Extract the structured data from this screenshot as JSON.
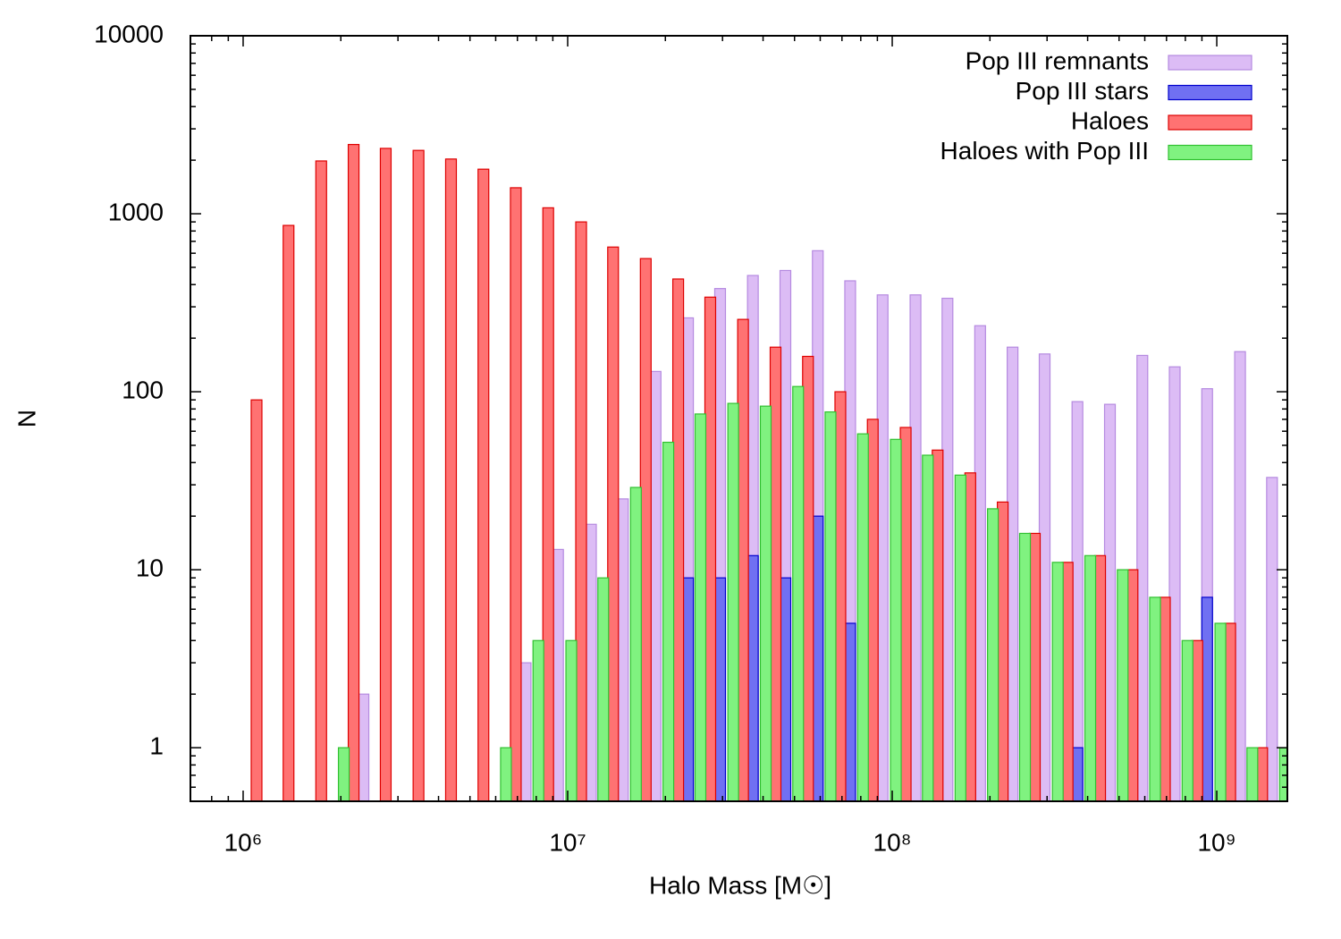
{
  "chart_data": {
    "type": "bar",
    "xlabel": "Halo Mass [M☉]",
    "ylabel": "N",
    "xlog": true,
    "ylog": true,
    "xlim": [
      688000,
      1650000000
    ],
    "ylim": [
      0.5,
      10000
    ],
    "xticks": [
      {
        "value": 1000000,
        "label": "10⁶"
      },
      {
        "value": 10000000,
        "label": "10⁷"
      },
      {
        "value": 100000000,
        "label": "10⁸"
      },
      {
        "value": 1000000000,
        "label": "10⁹"
      }
    ],
    "xminorticks": [
      800000,
      900000,
      2000000,
      3000000,
      4000000,
      5000000,
      6000000,
      7000000,
      8000000,
      9000000,
      20000000,
      30000000,
      40000000,
      50000000,
      60000000,
      70000000,
      80000000,
      90000000,
      200000000,
      300000000,
      400000000,
      500000000,
      600000000,
      700000000,
      800000000,
      900000000
    ],
    "yticks": [
      1,
      10,
      100,
      1000,
      10000
    ],
    "yminorticks": [
      0.6,
      0.7,
      0.8,
      0.9,
      2,
      3,
      4,
      5,
      6,
      7,
      8,
      9,
      20,
      30,
      40,
      50,
      60,
      70,
      80,
      90,
      200,
      300,
      400,
      500,
      600,
      700,
      800,
      900,
      2000,
      3000,
      4000,
      5000,
      6000,
      7000,
      8000,
      9000
    ],
    "legend": "upper right",
    "x": [
      1100000,
      1380000,
      1740000,
      2190000,
      2750000,
      3470000,
      4370000,
      5500000,
      6920000,
      8710000,
      11000000,
      13800000,
      17400000,
      21900000,
      27500000,
      34700000,
      43700000,
      55000000,
      69200000,
      87100000,
      110000000,
      138000000,
      174000000,
      219000000,
      275000000,
      347000000,
      437000000,
      550000000,
      692000000,
      871000000,
      1100000000,
      1380000000,
      1740000000
    ],
    "series": [
      {
        "name": "Pop III remnants",
        "color": "#dcbcf5",
        "edgecolor": "#b58ae0",
        "values": [
          null,
          null,
          null,
          2,
          null,
          null,
          null,
          null,
          3,
          13,
          18,
          25,
          130,
          260,
          380,
          450,
          480,
          620,
          420,
          350,
          350,
          335,
          235,
          178,
          163,
          88,
          85,
          160,
          138,
          104,
          168,
          33,
          null
        ]
      },
      {
        "name": "Pop III stars",
        "color": "#7070f2",
        "edgecolor": "#0000cc",
        "values": [
          null,
          null,
          null,
          null,
          null,
          null,
          null,
          null,
          null,
          null,
          null,
          null,
          null,
          9,
          9,
          12,
          9,
          20,
          5,
          null,
          null,
          null,
          null,
          null,
          null,
          1,
          null,
          null,
          null,
          7,
          null,
          null,
          null
        ]
      },
      {
        "name": "Haloes",
        "color": "#ff7272",
        "edgecolor": "#dd0000",
        "values": [
          90,
          860,
          1980,
          2450,
          2330,
          2270,
          2030,
          1780,
          1400,
          1080,
          900,
          650,
          560,
          430,
          340,
          255,
          178,
          158,
          100,
          70,
          63,
          47,
          35,
          24,
          16,
          11,
          12,
          10,
          7,
          4,
          5,
          1,
          null
        ]
      },
      {
        "name": "Haloes with Pop III",
        "color": "#80f280",
        "edgecolor": "#30c030",
        "values": [
          null,
          null,
          null,
          1,
          null,
          null,
          null,
          null,
          1,
          4,
          4,
          9,
          29,
          52,
          75,
          86,
          83,
          107,
          77,
          58,
          54,
          44,
          34,
          22,
          16,
          11,
          12,
          10,
          7,
          4,
          5,
          1,
          1
        ]
      }
    ]
  }
}
